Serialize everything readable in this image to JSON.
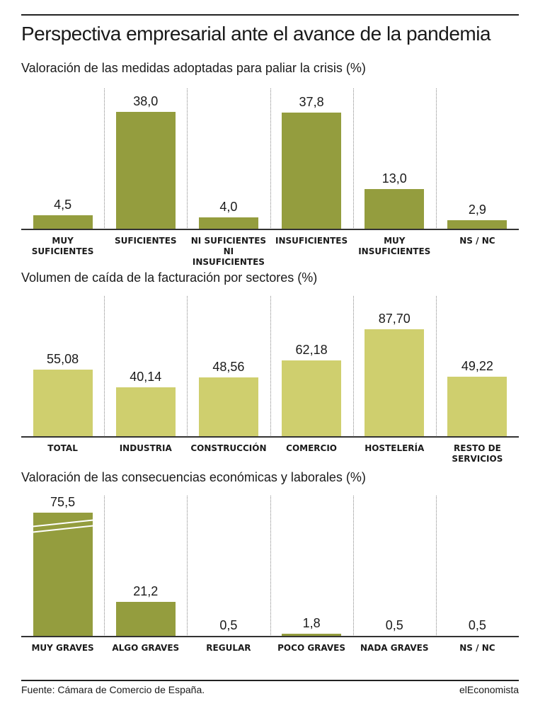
{
  "title": "Perspectiva empresarial ante el avance de la pandemia",
  "source": "Fuente: Cámara de Comercio de España.",
  "brand": "elEconomista",
  "chart_data": [
    {
      "type": "bar",
      "title": "Valoración de las medidas adoptadas para paliar la crisis (%)",
      "categories": [
        "MUY SUFICIENTES",
        "SUFICIENTES",
        "NI SUFICIENTES NI INSUFICIENTES",
        "INSUFICIENTES",
        "MUY INSUFICIENTES",
        "NS / NC"
      ],
      "values": [
        4.5,
        38.0,
        4.0,
        37.8,
        13.0,
        2.9
      ],
      "value_labels": [
        "4,5",
        "38,0",
        "4,0",
        "37,8",
        "13,0",
        "2,9"
      ],
      "color": "#949d3e"
    },
    {
      "type": "bar",
      "title": "Volumen de caída de la facturación por sectores (%)",
      "categories": [
        "TOTAL",
        "INDUSTRIA",
        "CONSTRUCCIÓN",
        "COMERCIO",
        "HOSTELERÍA",
        "RESTO DE SERVICIOS"
      ],
      "values": [
        55.08,
        40.14,
        48.56,
        62.18,
        87.7,
        49.22
      ],
      "value_labels": [
        "55,08",
        "40,14",
        "48,56",
        "62,18",
        "87,70",
        "49,22"
      ],
      "color": "#cfcf6e"
    },
    {
      "type": "bar",
      "title": "Valoración de las consecuencias económicas y laborales (%)",
      "categories": [
        "MUY GRAVES",
        "ALGO GRAVES",
        "REGULAR",
        "POCO GRAVES",
        "NADA GRAVES",
        "NS / NC"
      ],
      "values": [
        75.5,
        21.2,
        0.5,
        1.8,
        0.5,
        0.5
      ],
      "value_labels": [
        "75,5",
        "21,2",
        "0,5",
        "1,8",
        "0,5",
        "0,5"
      ],
      "color": "#949d3e"
    }
  ]
}
